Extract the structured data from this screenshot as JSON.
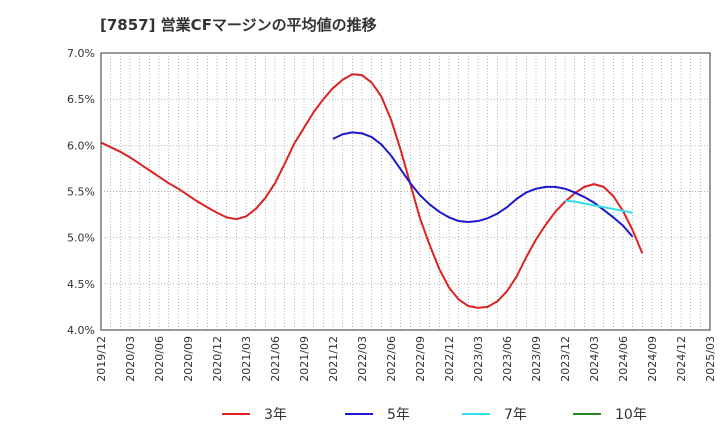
{
  "chart_data": {
    "type": "line",
    "title": "[7857]  営業CFマージンの平均値の推移",
    "xlabel": "",
    "ylabel": "",
    "ylim": [
      4.0,
      7.0
    ],
    "xlim": [
      "2019/12",
      "2025/03"
    ],
    "y_ticks": [
      "4.0%",
      "4.5%",
      "5.0%",
      "5.5%",
      "6.0%",
      "6.5%",
      "7.0%"
    ],
    "x_ticks": [
      "2019/12",
      "2020/03",
      "2020/06",
      "2020/09",
      "2020/12",
      "2021/03",
      "2021/06",
      "2021/09",
      "2021/12",
      "2022/03",
      "2022/06",
      "2022/09",
      "2022/12",
      "2023/03",
      "2023/06",
      "2023/09",
      "2023/12",
      "2024/03",
      "2024/06",
      "2024/09",
      "2024/12",
      "2025/03"
    ],
    "grid": true,
    "legend_position": "bottom",
    "series": [
      {
        "name": "3年",
        "color": "#dd2222",
        "points": [
          [
            "2019/12",
            6.03
          ],
          [
            "2020/01",
            5.98
          ],
          [
            "2020/02",
            5.93
          ],
          [
            "2020/03",
            5.87
          ],
          [
            "2020/04",
            5.8
          ],
          [
            "2020/05",
            5.73
          ],
          [
            "2020/06",
            5.66
          ],
          [
            "2020/07",
            5.59
          ],
          [
            "2020/08",
            5.53
          ],
          [
            "2020/09",
            5.46
          ],
          [
            "2020/10",
            5.39
          ],
          [
            "2020/11",
            5.33
          ],
          [
            "2020/12",
            5.27
          ],
          [
            "2021/01",
            5.22
          ],
          [
            "2021/02",
            5.2
          ],
          [
            "2021/03",
            5.23
          ],
          [
            "2021/04",
            5.31
          ],
          [
            "2021/05",
            5.43
          ],
          [
            "2021/06",
            5.59
          ],
          [
            "2021/07",
            5.8
          ],
          [
            "2021/08",
            6.02
          ],
          [
            "2021/09",
            6.19
          ],
          [
            "2021/10",
            6.36
          ],
          [
            "2021/11",
            6.5
          ],
          [
            "2021/12",
            6.62
          ],
          [
            "2022/01",
            6.71
          ],
          [
            "2022/02",
            6.77
          ],
          [
            "2022/03",
            6.76
          ],
          [
            "2022/04",
            6.68
          ],
          [
            "2022/05",
            6.53
          ],
          [
            "2022/06",
            6.28
          ],
          [
            "2022/07",
            5.95
          ],
          [
            "2022/08",
            5.58
          ],
          [
            "2022/09",
            5.21
          ],
          [
            "2022/10",
            4.92
          ],
          [
            "2022/11",
            4.66
          ],
          [
            "2022/12",
            4.46
          ],
          [
            "2023/01",
            4.33
          ],
          [
            "2023/02",
            4.26
          ],
          [
            "2023/03",
            4.24
          ],
          [
            "2023/04",
            4.25
          ],
          [
            "2023/05",
            4.31
          ],
          [
            "2023/06",
            4.42
          ],
          [
            "2023/07",
            4.58
          ],
          [
            "2023/08",
            4.79
          ],
          [
            "2023/09",
            4.98
          ],
          [
            "2023/10",
            5.14
          ],
          [
            "2023/11",
            5.28
          ],
          [
            "2023/12",
            5.39
          ],
          [
            "2024/01",
            5.48
          ],
          [
            "2024/02",
            5.55
          ],
          [
            "2024/03",
            5.58
          ],
          [
            "2024/04",
            5.55
          ],
          [
            "2024/05",
            5.45
          ],
          [
            "2024/06",
            5.29
          ],
          [
            "2024/07",
            5.08
          ],
          [
            "2024/08",
            4.83
          ]
        ]
      },
      {
        "name": "5年",
        "color": "#1a1acc",
        "points": [
          [
            "2021/12",
            6.07
          ],
          [
            "2022/01",
            6.12
          ],
          [
            "2022/02",
            6.14
          ],
          [
            "2022/03",
            6.13
          ],
          [
            "2022/04",
            6.09
          ],
          [
            "2022/05",
            6.01
          ],
          [
            "2022/06",
            5.89
          ],
          [
            "2022/07",
            5.74
          ],
          [
            "2022/08",
            5.59
          ],
          [
            "2022/09",
            5.46
          ],
          [
            "2022/10",
            5.36
          ],
          [
            "2022/11",
            5.28
          ],
          [
            "2022/12",
            5.22
          ],
          [
            "2023/01",
            5.18
          ],
          [
            "2023/02",
            5.17
          ],
          [
            "2023/03",
            5.18
          ],
          [
            "2023/04",
            5.21
          ],
          [
            "2023/05",
            5.26
          ],
          [
            "2023/06",
            5.33
          ],
          [
            "2023/07",
            5.42
          ],
          [
            "2023/08",
            5.49
          ],
          [
            "2023/09",
            5.53
          ],
          [
            "2023/10",
            5.55
          ],
          [
            "2023/11",
            5.55
          ],
          [
            "2023/12",
            5.53
          ],
          [
            "2024/01",
            5.49
          ],
          [
            "2024/02",
            5.44
          ],
          [
            "2024/03",
            5.38
          ],
          [
            "2024/04",
            5.3
          ],
          [
            "2024/05",
            5.22
          ],
          [
            "2024/06",
            5.13
          ],
          [
            "2024/07",
            5.01
          ]
        ]
      },
      {
        "name": "7年",
        "color": "#33ddee",
        "points": [
          [
            "2023/12",
            5.4
          ],
          [
            "2024/01",
            5.39
          ],
          [
            "2024/02",
            5.37
          ],
          [
            "2024/03",
            5.35
          ],
          [
            "2024/04",
            5.33
          ],
          [
            "2024/05",
            5.31
          ],
          [
            "2024/06",
            5.29
          ],
          [
            "2024/07",
            5.27
          ]
        ]
      },
      {
        "name": "10年",
        "color": "#228822",
        "points": []
      }
    ]
  }
}
